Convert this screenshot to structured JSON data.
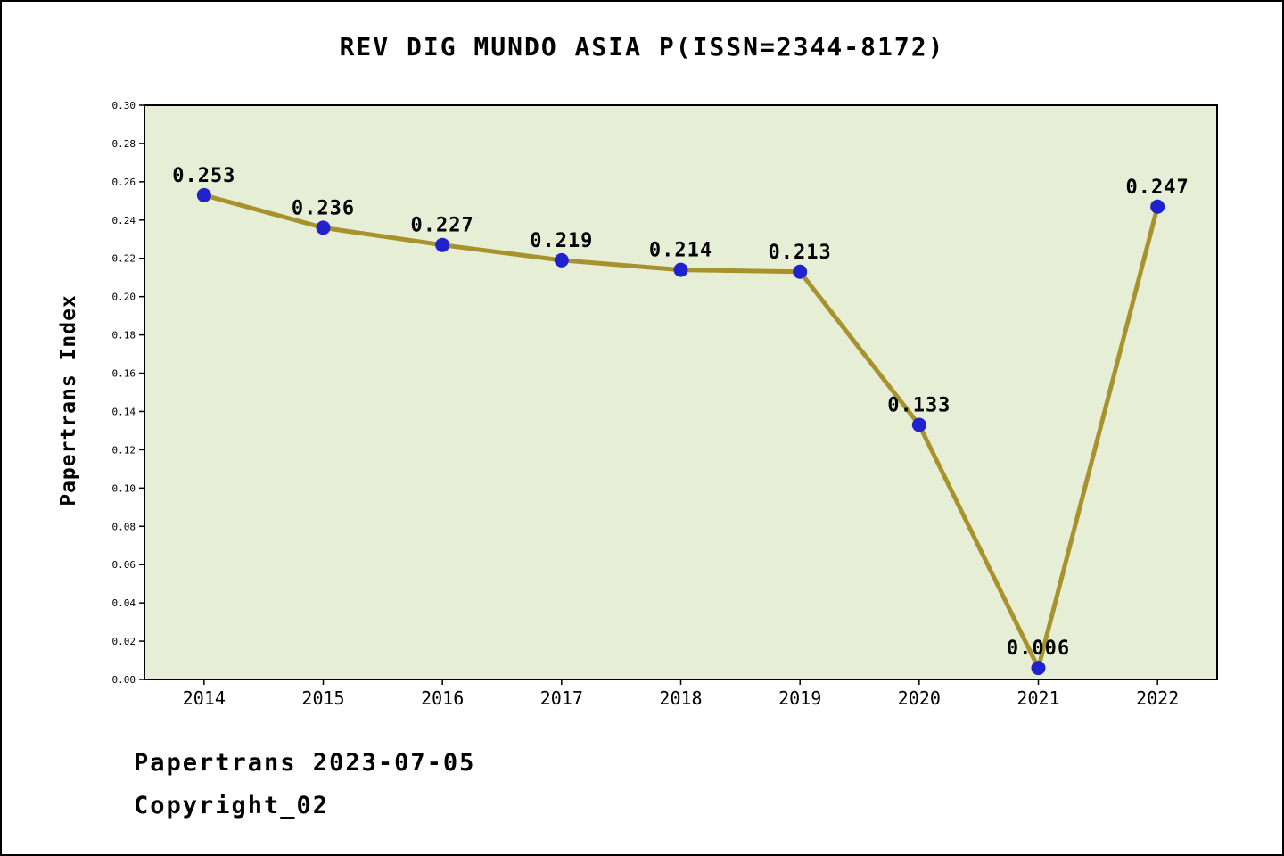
{
  "title": "REV DIG MUNDO ASIA P(ISSN=2344-8172)",
  "footer": {
    "date_line": "Papertrans 2023-07-05",
    "copyright_line": "Copyright_02"
  },
  "chart_data": {
    "type": "line",
    "title": "REV DIG MUNDO ASIA P(ISSN=2344-8172)",
    "xlabel": "",
    "ylabel": "Papertrans Index",
    "categories": [
      "2014",
      "2015",
      "2016",
      "2017",
      "2018",
      "2019",
      "2020",
      "2021",
      "2022"
    ],
    "values": [
      0.253,
      0.236,
      0.227,
      0.219,
      0.214,
      0.213,
      0.133,
      0.006,
      0.247
    ],
    "point_labels": [
      "0.253",
      "0.236",
      "0.227",
      "0.219",
      "0.214",
      "0.213",
      "0.133",
      "0.006",
      "0.247"
    ],
    "ylim": [
      0.0,
      0.3
    ],
    "ytick_step": 0.02,
    "grid": false,
    "legend": "none",
    "colors": {
      "line": "#a8922d",
      "marker": "#2222cc",
      "plot_bg": "#e6efd5",
      "axis": "#000000",
      "text": "#000000"
    }
  }
}
